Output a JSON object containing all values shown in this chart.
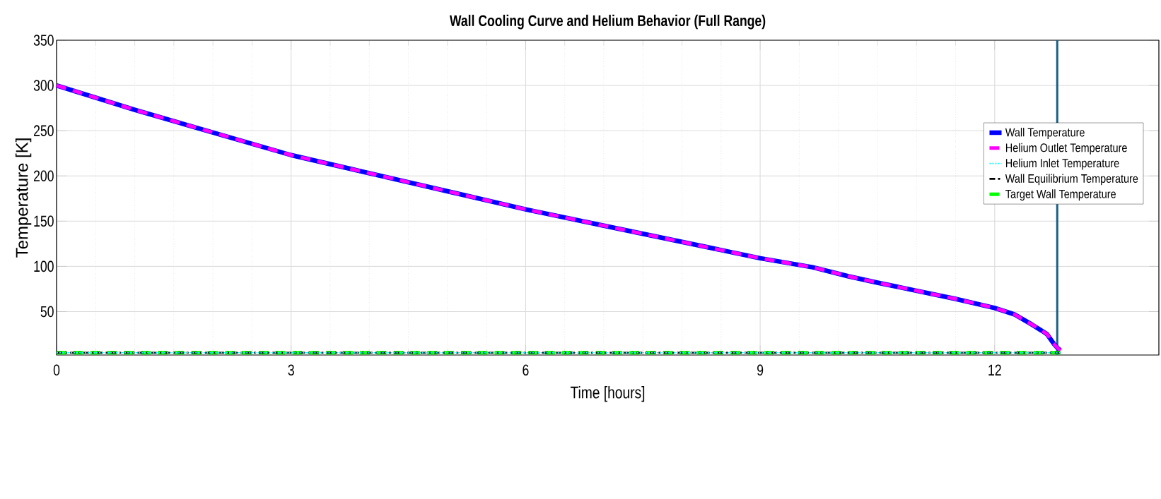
{
  "chart_data": {
    "type": "line",
    "title": "Wall Cooling Curve and Helium Behavior (Full Range)",
    "xlabel": "Time [hours]",
    "ylabel": "Temperature  [K]",
    "xlim": [
      0,
      14.1
    ],
    "ylim": [
      2,
      350
    ],
    "xticks": [
      0,
      3,
      6,
      9,
      12
    ],
    "yticks": [
      50,
      100,
      150,
      200,
      250,
      300,
      350
    ],
    "grid": true,
    "legend": "right",
    "marker": "none",
    "series": [
      {
        "name": "Wall Temperature",
        "color": "#0000ff",
        "line_style": "solid",
        "x": [
          0,
          1,
          2,
          3,
          3.8,
          5,
          6,
          7,
          8,
          9,
          9.67,
          10.13,
          10.5,
          11,
          11.5,
          12,
          12.25,
          12.47,
          12.6,
          12.67,
          12.76,
          12.8,
          12.84
        ],
        "values": [
          300,
          273,
          248,
          223,
          207,
          183,
          163,
          145,
          127,
          109,
          99,
          89,
          82,
          73,
          64,
          54,
          47,
          36,
          29,
          25,
          14,
          10,
          7
        ]
      },
      {
        "name": "Helium Outlet Temperature",
        "color": "#ff00ff",
        "line_style": "dashed",
        "x": [
          0,
          1,
          2,
          3,
          3.8,
          5,
          6,
          7,
          8,
          9,
          9.67,
          10.13,
          10.5,
          11,
          11.5,
          12,
          12.25,
          12.47,
          12.6,
          12.67,
          12.76,
          12.8,
          12.84
        ],
        "values": [
          300,
          273,
          248,
          223,
          207,
          183,
          163,
          145,
          127,
          109,
          99,
          89,
          82,
          73,
          64,
          54,
          47,
          36,
          29,
          25,
          14,
          10,
          7
        ]
      },
      {
        "name": "Helium Inlet Temperature",
        "color": "#00ffff",
        "line_style": "dotted",
        "x": [
          0,
          12.84
        ],
        "values": [
          4.5,
          4.5
        ]
      },
      {
        "name": "Wall Equilibrium Temperature",
        "color": "#000000",
        "line_style": "dashdot",
        "x": [
          0,
          12.84
        ],
        "values": [
          4.5,
          4.5
        ]
      },
      {
        "name": "Target Wall Temperature",
        "color": "#00ff00",
        "line_style": "dashed",
        "x": [
          0,
          12.84
        ],
        "values": [
          4.5,
          4.5
        ]
      }
    ],
    "ref_lines": [
      {
        "axis": "x",
        "value": 12.8,
        "color": "#1b5e85",
        "line_style": "solid"
      }
    ]
  }
}
